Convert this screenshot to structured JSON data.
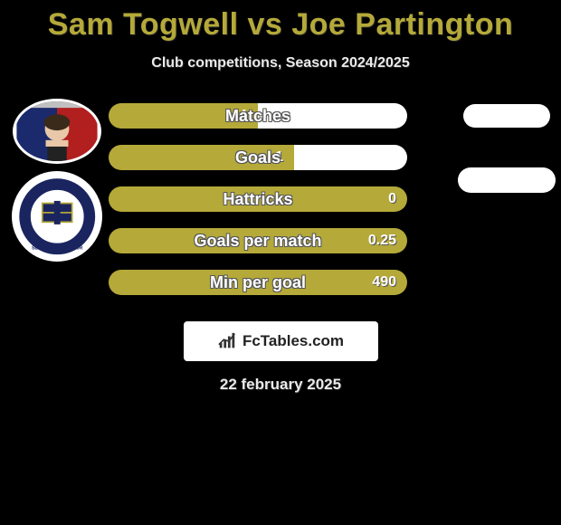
{
  "title": "Sam Togwell vs Joe Partington",
  "subtitle": "Club competitions, Season 2024/2025",
  "date": "22 february 2025",
  "watermark": "FcTables.com",
  "colors": {
    "accent": "#b4a939",
    "bg": "#000000",
    "bar_right": "#ffffff",
    "pill": "#ffffff"
  },
  "player1": {
    "name": "Sam Togwell"
  },
  "player2": {
    "name": "Joe Partington"
  },
  "stats": [
    {
      "label": "Matches",
      "left_value": "4",
      "left_width": 165,
      "right_width": 165,
      "full": false,
      "show_pill": true
    },
    {
      "label": "Goals",
      "left_value": "1",
      "left_width": 205,
      "right_width": 125,
      "full": false,
      "show_pill": true
    },
    {
      "label": "Hattricks",
      "left_value": "0",
      "left_width": 330,
      "right_width": 0,
      "full": true,
      "show_pill": false
    },
    {
      "label": "Goals per match",
      "left_value": "0.25",
      "left_width": 330,
      "right_width": 0,
      "full": true,
      "show_pill": false
    },
    {
      "label": "Min per goal",
      "left_value": "490",
      "left_width": 330,
      "right_width": 0,
      "full": true,
      "show_pill": false
    }
  ]
}
